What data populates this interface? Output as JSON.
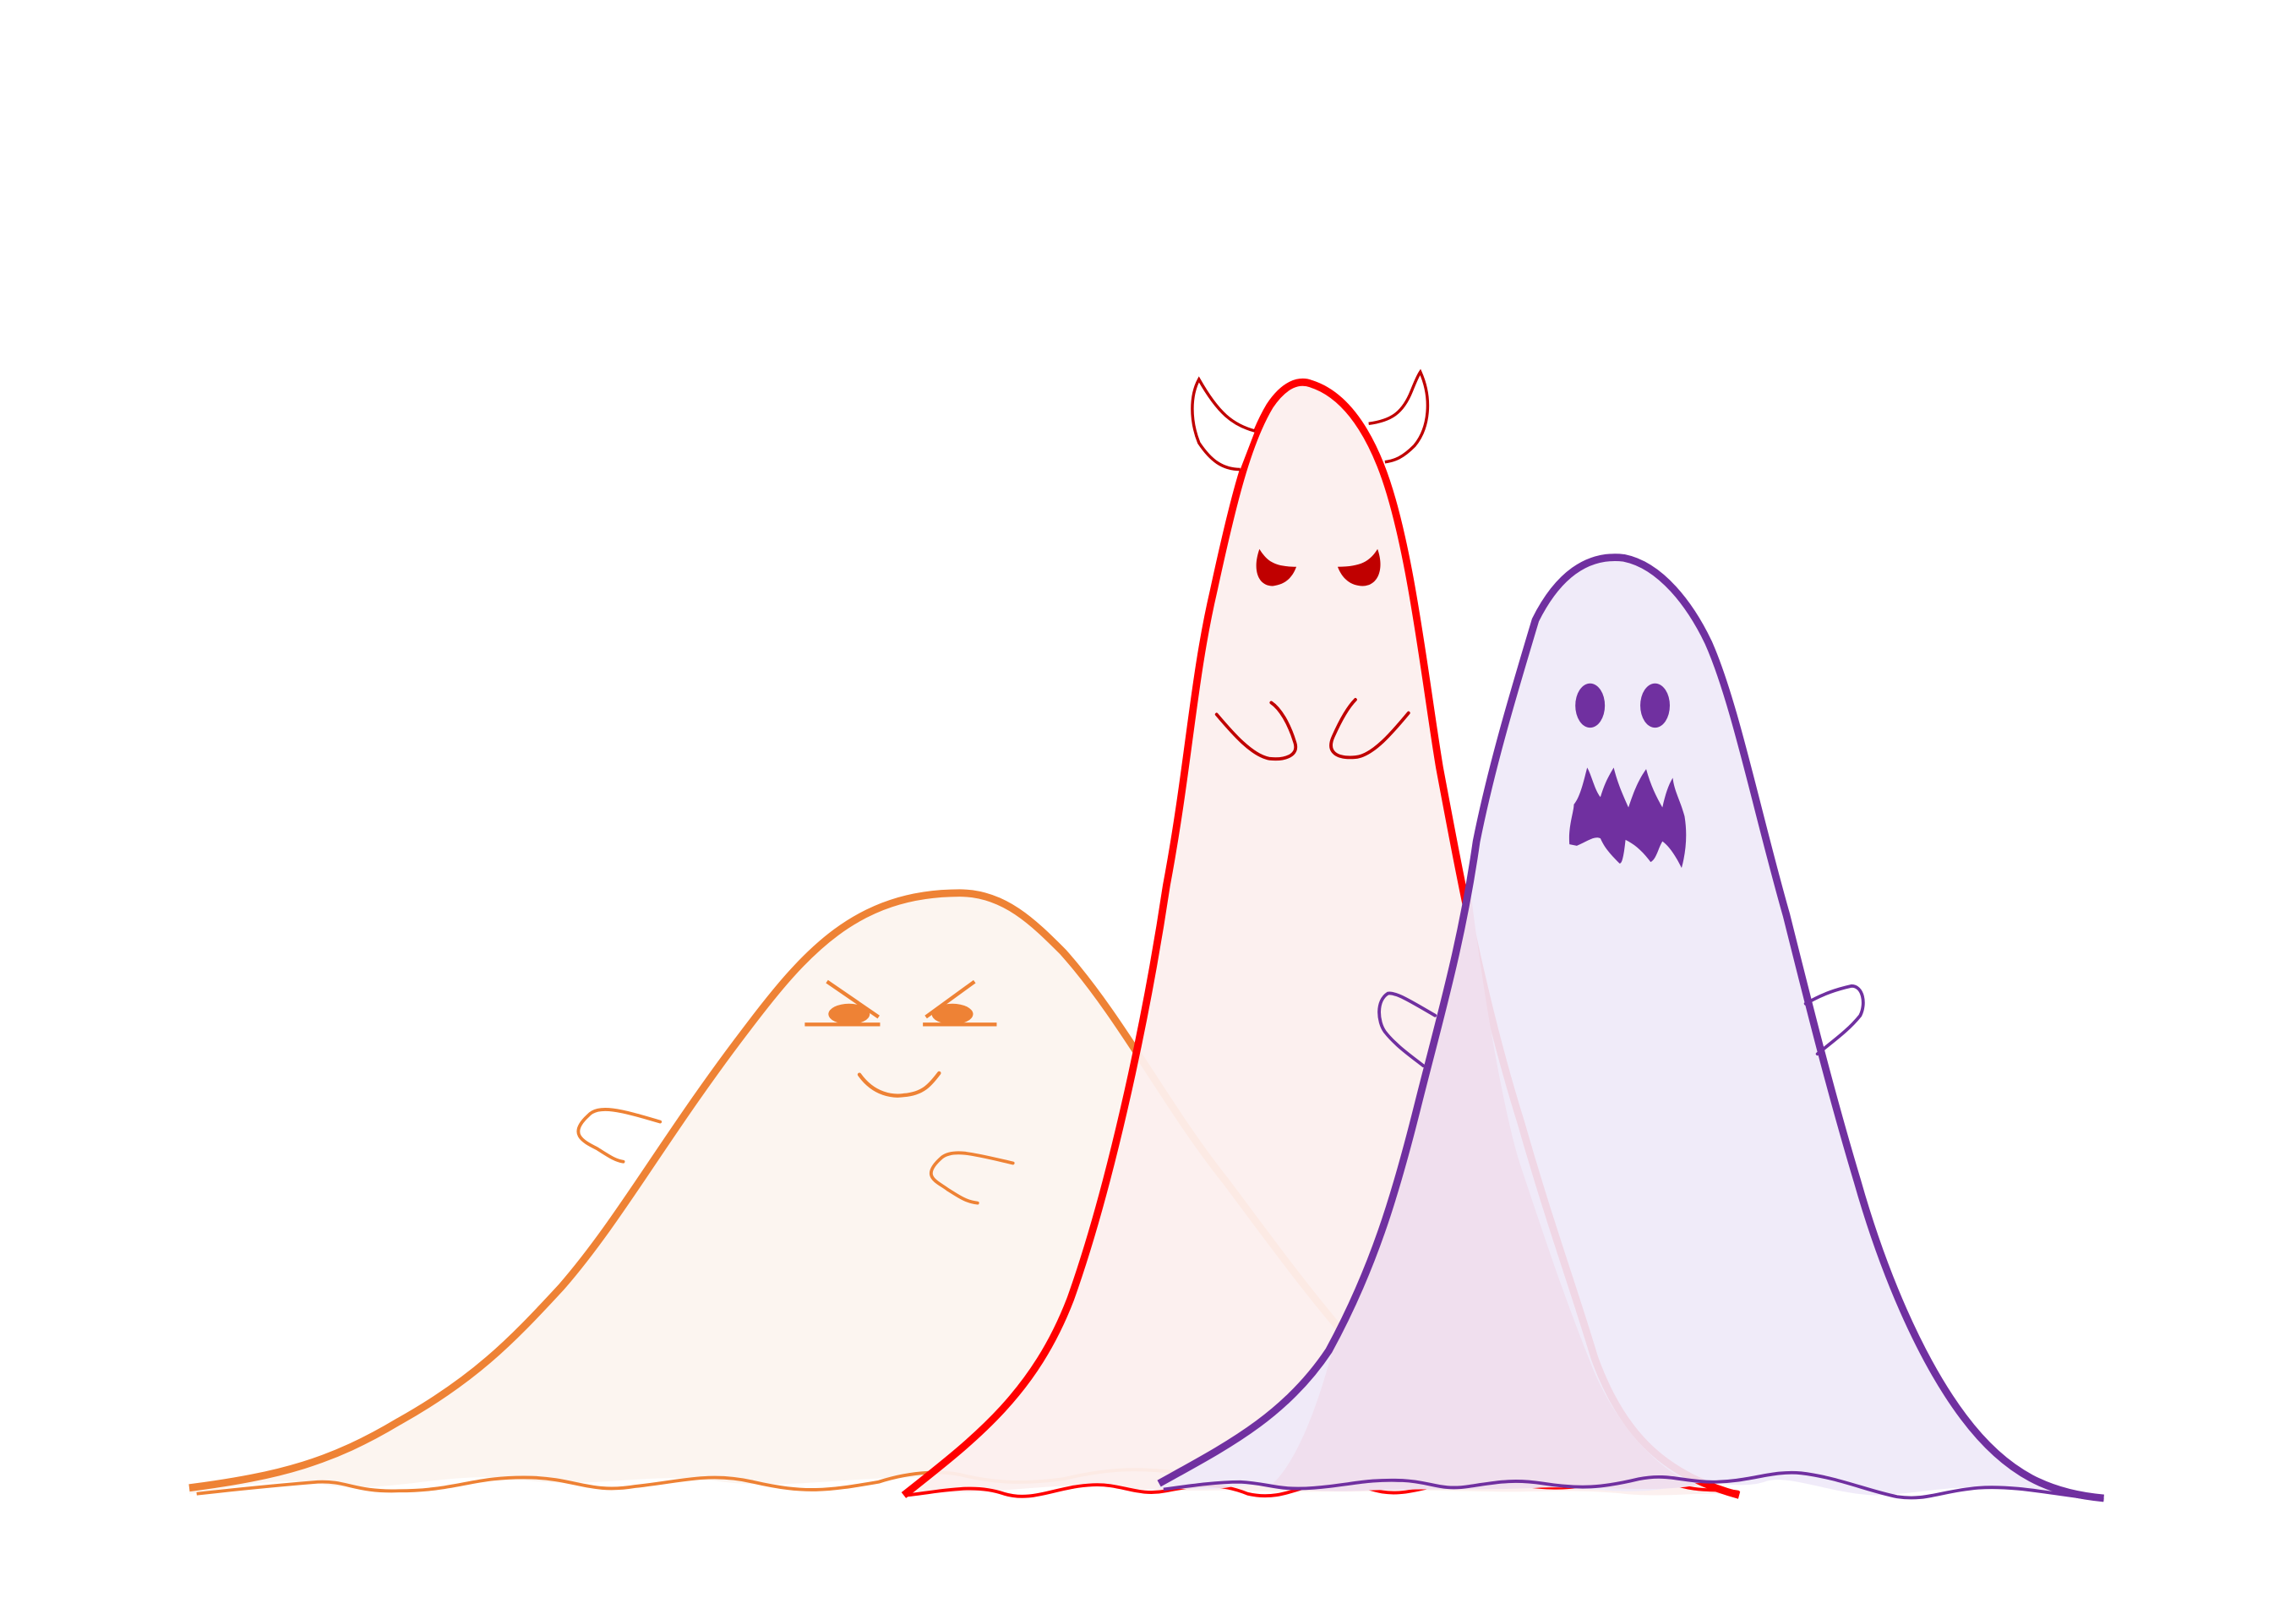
{
  "scene": {
    "background": "#ffffff",
    "ghosts": [
      {
        "id": "orange",
        "stroke": "#ee8235",
        "fill": "#fcf5f0",
        "expression": "grumpy"
      },
      {
        "id": "red",
        "stroke": "#ff0000",
        "fill": "#fcefee",
        "feature_color": "#c00000",
        "expression": "devilish",
        "has_horns": true
      },
      {
        "id": "purple",
        "stroke": "#7030a0",
        "fill": "#efe9f8",
        "overlap_fill": "#f0dfee",
        "expression": "scary"
      }
    ]
  }
}
